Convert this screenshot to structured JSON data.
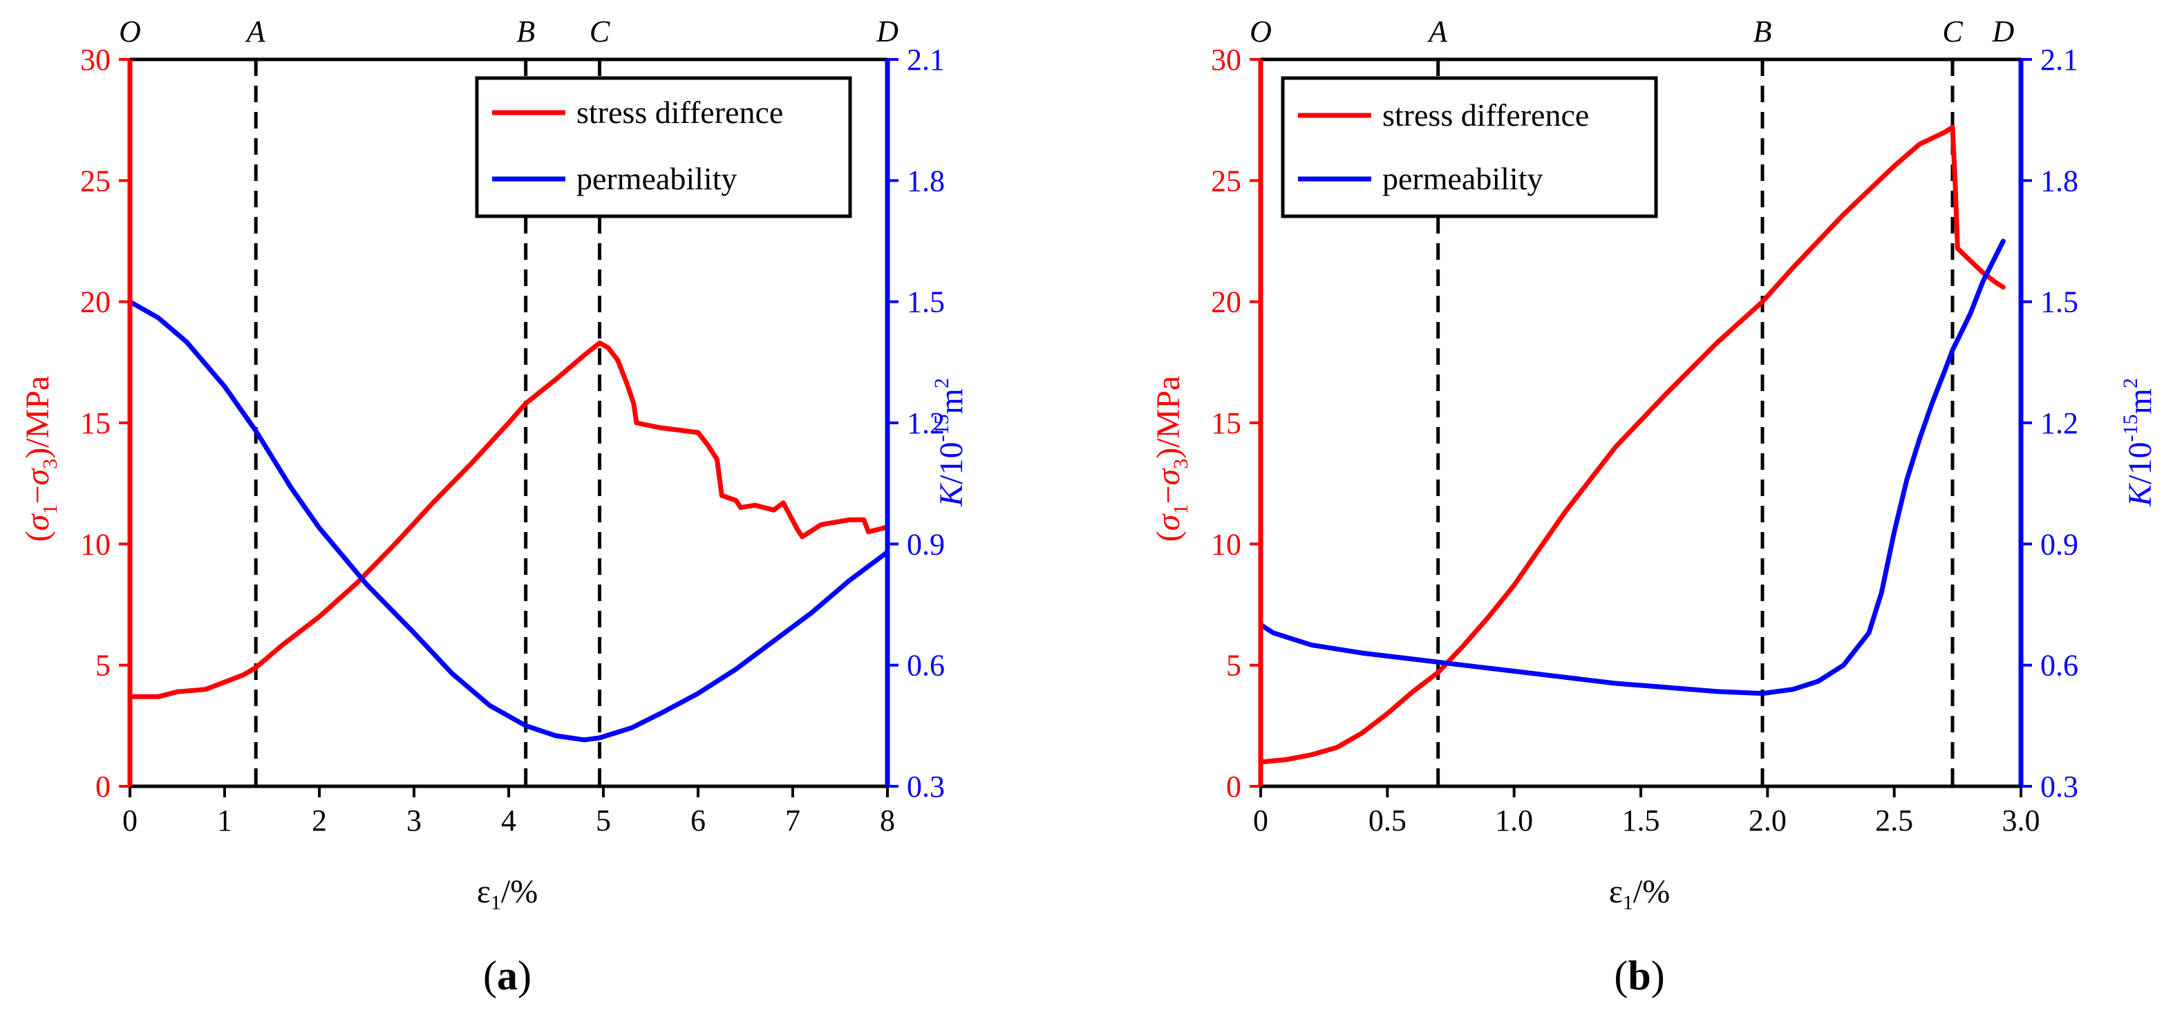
{
  "colors": {
    "stress": "#ff0000",
    "permeability": "#0000ff",
    "frame": "#000000",
    "stage_line": "#000000"
  },
  "chart_data": [
    {
      "type": "line",
      "panel_label": {
        "open": "(",
        "letter": "a",
        "close": ")"
      },
      "xlabel": {
        "eps": "ε",
        "sub": "1",
        "rest": "/%"
      },
      "ylabel_left": {
        "open": "(",
        "s1": "σ",
        "sub1": "1",
        "dash": "−",
        "s3": "σ",
        "sub3": "3",
        "rest": ")/MPa"
      },
      "ylabel_right": {
        "k": "K",
        "unit": "/10",
        "sup": "-15",
        "m": "m",
        "sup2": "2"
      },
      "xlim": [
        0,
        8
      ],
      "ylim_left": [
        0,
        30
      ],
      "ylim_right": [
        0.3,
        2.1
      ],
      "x_ticks": [
        "0",
        "1",
        "2",
        "3",
        "4",
        "5",
        "6",
        "7",
        "8"
      ],
      "x_tick_values": [
        0,
        1,
        2,
        3,
        4,
        5,
        6,
        7,
        8
      ],
      "y_left_ticks": [
        "0",
        "5",
        "10",
        "15",
        "20",
        "25",
        "30"
      ],
      "y_left_tick_values": [
        0,
        5,
        10,
        15,
        20,
        25,
        30
      ],
      "y_right_ticks": [
        "0.3",
        "0.6",
        "0.9",
        "1.2",
        "1.5",
        "1.8",
        "2.1"
      ],
      "y_right_tick_values": [
        0.3,
        0.6,
        0.9,
        1.2,
        1.5,
        1.8,
        2.1
      ],
      "stages": [
        {
          "label": "O",
          "x": 0,
          "dashed": false
        },
        {
          "label": "A",
          "x": 1.33,
          "dashed": true
        },
        {
          "label": "B",
          "x": 4.18,
          "dashed": true
        },
        {
          "label": "C",
          "x": 4.96,
          "dashed": true
        },
        {
          "label": "D",
          "x": 8,
          "dashed": false
        }
      ],
      "legend": {
        "position": "top-right",
        "entries": [
          "stress difference",
          "permeability"
        ]
      },
      "series": [
        {
          "name": "stress difference",
          "axis": "left",
          "x": [
            0,
            0.3,
            0.5,
            0.8,
            1.0,
            1.2,
            1.33,
            1.6,
            2.0,
            2.4,
            2.8,
            3.2,
            3.6,
            4.0,
            4.18,
            4.5,
            4.8,
            4.96,
            5.05,
            5.15,
            5.25,
            5.32,
            5.35,
            5.6,
            5.8,
            6.0,
            6.1,
            6.2,
            6.25,
            6.4,
            6.45,
            6.6,
            6.8,
            6.9,
            7.05,
            7.1,
            7.3,
            7.6,
            7.75,
            7.8,
            8.0
          ],
          "values": [
            3.7,
            3.7,
            3.9,
            4.0,
            4.3,
            4.6,
            4.9,
            5.8,
            7.0,
            8.4,
            10.0,
            11.7,
            13.3,
            15.0,
            15.8,
            16.8,
            17.8,
            18.3,
            18.1,
            17.6,
            16.6,
            15.8,
            15.0,
            14.8,
            14.7,
            14.6,
            14.1,
            13.5,
            12.0,
            11.8,
            11.5,
            11.6,
            11.4,
            11.7,
            10.6,
            10.3,
            10.8,
            11.0,
            11.0,
            10.5,
            10.7
          ]
        },
        {
          "name": "permeability",
          "axis": "right",
          "x": [
            0,
            0.3,
            0.6,
            1.0,
            1.33,
            1.7,
            2.0,
            2.5,
            3.0,
            3.4,
            3.8,
            4.18,
            4.5,
            4.8,
            4.96,
            5.3,
            5.6,
            6.0,
            6.4,
            6.8,
            7.2,
            7.6,
            8.0
          ],
          "values": [
            1.5,
            1.46,
            1.4,
            1.29,
            1.18,
            1.04,
            0.94,
            0.8,
            0.68,
            0.58,
            0.5,
            0.45,
            0.425,
            0.415,
            0.42,
            0.445,
            0.48,
            0.53,
            0.59,
            0.66,
            0.73,
            0.81,
            0.88
          ]
        }
      ]
    },
    {
      "type": "line",
      "panel_label": {
        "open": "(",
        "letter": "b",
        "close": ")"
      },
      "xlabel": {
        "eps": "ε",
        "sub": "1",
        "rest": "/%"
      },
      "ylabel_left": {
        "open": "(",
        "s1": "σ",
        "sub1": "1",
        "dash": "−",
        "s3": "σ",
        "sub3": "3",
        "rest": ")/MPa"
      },
      "ylabel_right": {
        "k": "K",
        "unit": "/10",
        "sup": "-15",
        "m": "m",
        "sup2": "2"
      },
      "xlim": [
        0,
        3.0
      ],
      "ylim_left": [
        0,
        30
      ],
      "ylim_right": [
        0.3,
        2.1
      ],
      "x_ticks": [
        "0",
        "0.5",
        "1.0",
        "1.5",
        "2.0",
        "2.5",
        "3.0"
      ],
      "x_tick_values": [
        0,
        0.5,
        1.0,
        1.5,
        2.0,
        2.5,
        3.0
      ],
      "y_left_ticks": [
        "0",
        "5",
        "10",
        "15",
        "20",
        "25",
        "30"
      ],
      "y_left_tick_values": [
        0,
        5,
        10,
        15,
        20,
        25,
        30
      ],
      "y_right_ticks": [
        "0.3",
        "0.6",
        "0.9",
        "1.2",
        "1.5",
        "1.8",
        "2.1"
      ],
      "y_right_tick_values": [
        0.3,
        0.6,
        0.9,
        1.2,
        1.5,
        1.8,
        2.1
      ],
      "stages": [
        {
          "label": "O",
          "x": 0,
          "dashed": false
        },
        {
          "label": "A",
          "x": 0.7,
          "dashed": true
        },
        {
          "label": "B",
          "x": 1.98,
          "dashed": true
        },
        {
          "label": "C",
          "x": 2.73,
          "dashed": true
        },
        {
          "label": "D",
          "x": 2.93,
          "dashed": false
        }
      ],
      "legend": {
        "position": "top-left",
        "entries": [
          "stress difference",
          "permeability"
        ]
      },
      "series": [
        {
          "name": "stress difference",
          "axis": "left",
          "x": [
            0,
            0.1,
            0.2,
            0.3,
            0.4,
            0.5,
            0.6,
            0.7,
            0.8,
            0.9,
            1.0,
            1.2,
            1.4,
            1.6,
            1.8,
            1.98,
            2.1,
            2.3,
            2.5,
            2.6,
            2.7,
            2.73,
            2.74,
            2.75,
            2.8,
            2.85,
            2.9,
            2.93
          ],
          "values": [
            1.0,
            1.1,
            1.3,
            1.6,
            2.2,
            3.0,
            3.9,
            4.7,
            5.8,
            7.0,
            8.3,
            11.3,
            14.0,
            16.2,
            18.3,
            20.0,
            21.4,
            23.6,
            25.6,
            26.5,
            27.0,
            27.2,
            25.0,
            22.2,
            21.7,
            21.2,
            20.8,
            20.6
          ]
        },
        {
          "name": "permeability",
          "axis": "right",
          "x": [
            0,
            0.05,
            0.2,
            0.4,
            0.6,
            0.8,
            1.0,
            1.2,
            1.4,
            1.6,
            1.8,
            1.98,
            2.1,
            2.2,
            2.3,
            2.4,
            2.45,
            2.5,
            2.55,
            2.6,
            2.65,
            2.7,
            2.73,
            2.8,
            2.85,
            2.93
          ],
          "values": [
            0.7,
            0.68,
            0.65,
            0.63,
            0.615,
            0.6,
            0.585,
            0.57,
            0.555,
            0.545,
            0.535,
            0.53,
            0.54,
            0.56,
            0.6,
            0.68,
            0.78,
            0.93,
            1.06,
            1.16,
            1.25,
            1.33,
            1.38,
            1.47,
            1.55,
            1.65
          ]
        }
      ]
    }
  ]
}
